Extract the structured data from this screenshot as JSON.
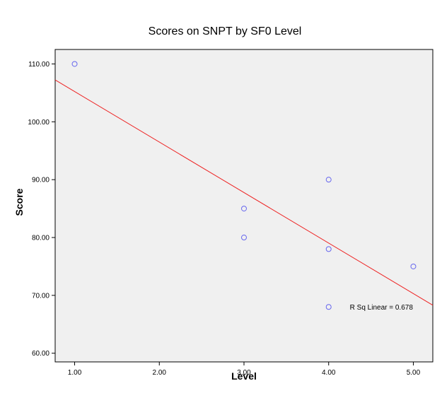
{
  "chart_data": {
    "type": "scatter",
    "title": "Scores on SNPT by SF0 Level",
    "xlabel": "Level",
    "ylabel": "Score",
    "xlim": [
      0.77,
      5.23
    ],
    "ylim": [
      58.5,
      112.5
    ],
    "xticks": [
      1,
      2,
      3,
      4,
      5
    ],
    "xtick_labels": [
      "1.00",
      "2.00",
      "3.00",
      "4.00",
      "5.00"
    ],
    "yticks": [
      60,
      70,
      80,
      90,
      100,
      110
    ],
    "ytick_labels": [
      "60.00",
      "70.00",
      "80.00",
      "90.00",
      "100.00",
      "110.00"
    ],
    "points": [
      {
        "x": 1,
        "y": 110
      },
      {
        "x": 3,
        "y": 85
      },
      {
        "x": 3,
        "y": 80
      },
      {
        "x": 4,
        "y": 90
      },
      {
        "x": 4,
        "y": 78
      },
      {
        "x": 4,
        "y": 68
      },
      {
        "x": 5,
        "y": 75
      }
    ],
    "fit_line": {
      "type": "linear",
      "intercept": 113.96,
      "slope": -8.73
    },
    "annotation": {
      "text": "R Sq Linear = 0.678",
      "x": 4.25,
      "y": 68
    },
    "grid": false,
    "colors": {
      "plot_bg": "#f0f0f0",
      "marker": "#6666ee",
      "fit_line": "#ee2222"
    }
  }
}
